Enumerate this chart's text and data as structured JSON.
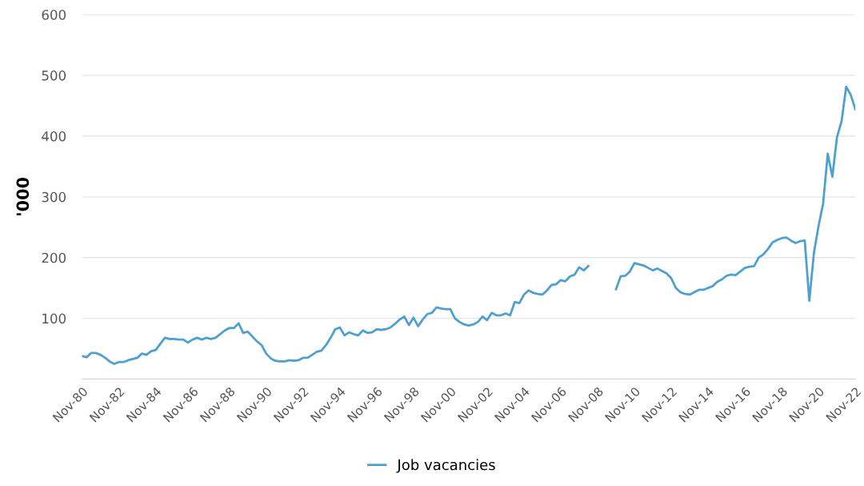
{
  "chart_data": {
    "type": "line",
    "ylabel": "'000",
    "categories": [
      "Nov-80",
      null,
      null,
      null,
      null,
      null,
      null,
      null,
      "Nov-82",
      null,
      null,
      null,
      null,
      null,
      null,
      null,
      "Nov-84",
      null,
      null,
      null,
      null,
      null,
      null,
      null,
      "Nov-86",
      null,
      null,
      null,
      null,
      null,
      null,
      null,
      "Nov-88",
      null,
      null,
      null,
      null,
      null,
      null,
      null,
      "Nov-90",
      null,
      null,
      null,
      null,
      null,
      null,
      null,
      "Nov-92",
      null,
      null,
      null,
      null,
      null,
      null,
      null,
      "Nov-94",
      null,
      null,
      null,
      null,
      null,
      null,
      null,
      "Nov-96",
      null,
      null,
      null,
      null,
      null,
      null,
      null,
      "Nov-98",
      null,
      null,
      null,
      null,
      null,
      null,
      null,
      "Nov-00",
      null,
      null,
      null,
      null,
      null,
      null,
      null,
      "Nov-02",
      null,
      null,
      null,
      null,
      null,
      null,
      null,
      "Nov-04",
      null,
      null,
      null,
      null,
      null,
      null,
      null,
      "Nov-06",
      null,
      null,
      null,
      null,
      null,
      null,
      null,
      "Nov-08",
      null,
      null,
      null,
      null,
      null,
      null,
      null,
      "Nov-10",
      null,
      null,
      null,
      null,
      null,
      null,
      null,
      "Nov-12",
      null,
      null,
      null,
      null,
      null,
      null,
      null,
      "Nov-14",
      null,
      null,
      null,
      null,
      null,
      null,
      null,
      "Nov-16",
      null,
      null,
      null,
      null,
      null,
      null,
      null,
      "Nov-18",
      null,
      null,
      null,
      null,
      null,
      null,
      null,
      "Nov-20",
      null,
      null,
      null,
      null,
      null,
      null,
      null,
      "Nov-22"
    ],
    "series": [
      {
        "name": "Job vacancies",
        "color": "#4f9fcf",
        "values": [
          38,
          36,
          43,
          43,
          40,
          35,
          29,
          25,
          28,
          28,
          31,
          33,
          35,
          42,
          40,
          46,
          48,
          58,
          68,
          66,
          66,
          65,
          65,
          60,
          65,
          68,
          65,
          68,
          66,
          68,
          74,
          80,
          84,
          84,
          92,
          76,
          78,
          70,
          62,
          56,
          42,
          34,
          30,
          29,
          29,
          31,
          30,
          31,
          35,
          35,
          40,
          45,
          47,
          56,
          68,
          82,
          85,
          72,
          77,
          74,
          72,
          80,
          76,
          77,
          82,
          81,
          82,
          85,
          91,
          98,
          103,
          89,
          101,
          87,
          98,
          107,
          109,
          118,
          116,
          115,
          115,
          100,
          94,
          90,
          88,
          90,
          94,
          103,
          97,
          109,
          105,
          105,
          108,
          105,
          127,
          125,
          139,
          146,
          142,
          140,
          139,
          146,
          155,
          156,
          163,
          161,
          169,
          172,
          184,
          179,
          186,
          null,
          null,
          null,
          null,
          null,
          148,
          169,
          170,
          177,
          191,
          189,
          187,
          183,
          179,
          182,
          178,
          174,
          166,
          150,
          143,
          140,
          139,
          143,
          147,
          147,
          150,
          153,
          160,
          164,
          170,
          172,
          171,
          177,
          183,
          185,
          186,
          200,
          205,
          214,
          225,
          229,
          232,
          233,
          228,
          224,
          227,
          228,
          129,
          208,
          252,
          289,
          371,
          333,
          398,
          424,
          481,
          468,
          444
        ]
      }
    ],
    "ylim": [
      0,
      600
    ],
    "yticks": [
      {
        "value": 0,
        "label": null
      },
      100,
      200,
      300,
      400,
      500,
      600
    ],
    "grid": "y",
    "legend": "bottom",
    "line_style": "solid",
    "marker": "none"
  }
}
